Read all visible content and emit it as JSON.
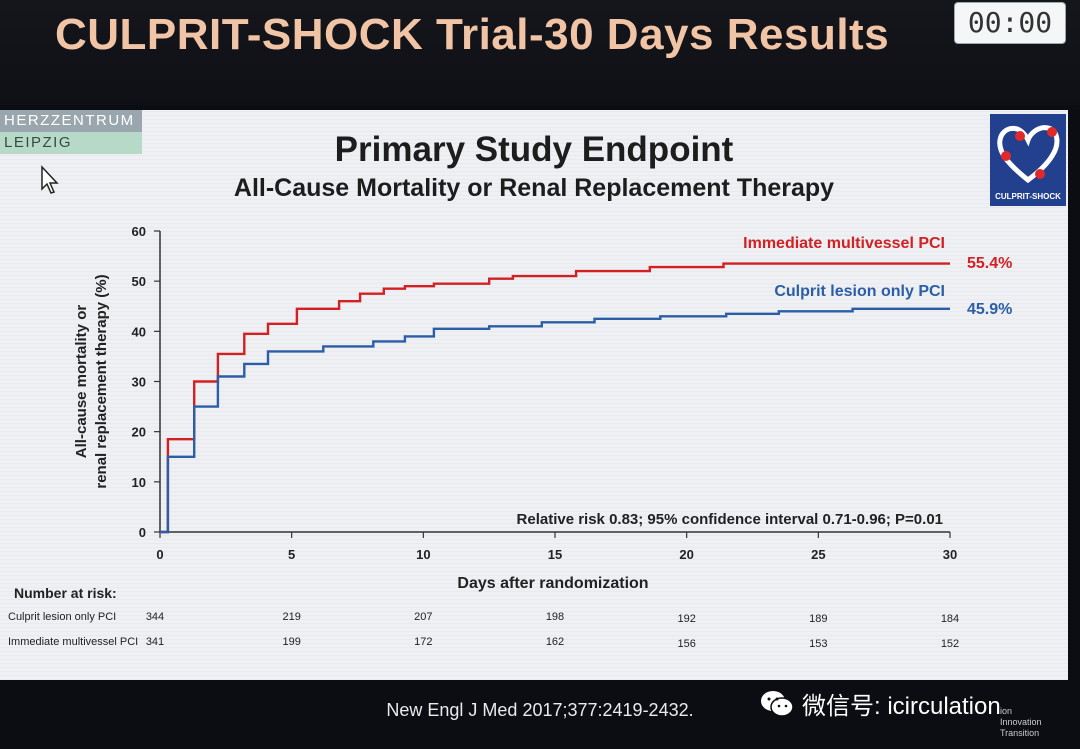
{
  "header": {
    "title": "CULPRIT-SHOCK Trial-30 Days Results",
    "timer": "00:00"
  },
  "logos": {
    "left_line1": "HERZZENTRUM",
    "left_line2": "LEIPZIG",
    "right_text": "CULPRIT-SHOCK"
  },
  "slide": {
    "title": "Primary Study Endpoint",
    "subtitle": "All-Cause Mortality or Renal Replacement Therapy"
  },
  "footer": {
    "citation": "New Engl J Med 2017;377:2419-2432."
  },
  "watermark": {
    "text": "微信号: icirculation",
    "small": [
      "ion",
      "Innovation",
      "Transition"
    ]
  },
  "colors": {
    "immediate": "#d32023",
    "culprit": "#2b5ea6"
  },
  "chart_data": {
    "type": "line",
    "title": "Primary Study Endpoint",
    "subtitle": "All-Cause Mortality or Renal Replacement Therapy",
    "xlabel": "Days after randomization",
    "ylabel": "All-cause mortality or renal replacement therapy (%)",
    "xlim": [
      0,
      30
    ],
    "ylim": [
      0,
      60
    ],
    "xticks": [
      0,
      5,
      10,
      15,
      20,
      25,
      30
    ],
    "yticks": [
      0,
      10,
      20,
      30,
      40,
      50,
      60
    ],
    "step": true,
    "series": [
      {
        "name": "Immediate multivessel PCI",
        "end_label": "55.4%",
        "points": [
          [
            0,
            0
          ],
          [
            0.3,
            0
          ],
          [
            0.3,
            18.5
          ],
          [
            1.3,
            18.5
          ],
          [
            1.3,
            30
          ],
          [
            2.2,
            30
          ],
          [
            2.2,
            35.5
          ],
          [
            3.2,
            35.5
          ],
          [
            3.2,
            39.5
          ],
          [
            4.1,
            39.5
          ],
          [
            4.1,
            41.5
          ],
          [
            5.2,
            41.5
          ],
          [
            5.2,
            44.5
          ],
          [
            6.8,
            44.5
          ],
          [
            6.8,
            46
          ],
          [
            7.6,
            46
          ],
          [
            7.6,
            47.5
          ],
          [
            8.5,
            47.5
          ],
          [
            8.5,
            48.5
          ],
          [
            9.3,
            48.5
          ],
          [
            9.3,
            49
          ],
          [
            10.4,
            49
          ],
          [
            10.4,
            49.5
          ],
          [
            12.5,
            49.5
          ],
          [
            12.5,
            50.5
          ],
          [
            13.4,
            50.5
          ],
          [
            13.4,
            51
          ],
          [
            15.8,
            51
          ],
          [
            15.8,
            52
          ],
          [
            18.6,
            52
          ],
          [
            18.6,
            52.8
          ],
          [
            21.4,
            52.8
          ],
          [
            21.4,
            53.5
          ],
          [
            30,
            53.5
          ]
        ]
      },
      {
        "name": "Culprit lesion only PCI",
        "end_label": "45.9%",
        "points": [
          [
            0,
            0
          ],
          [
            0.3,
            0
          ],
          [
            0.3,
            15
          ],
          [
            1.3,
            15
          ],
          [
            1.3,
            25
          ],
          [
            2.2,
            25
          ],
          [
            2.2,
            31
          ],
          [
            3.2,
            31
          ],
          [
            3.2,
            33.5
          ],
          [
            4.1,
            33.5
          ],
          [
            4.1,
            36
          ],
          [
            6.2,
            36
          ],
          [
            6.2,
            37
          ],
          [
            8.1,
            37
          ],
          [
            8.1,
            38
          ],
          [
            9.3,
            38
          ],
          [
            9.3,
            39
          ],
          [
            10.4,
            39
          ],
          [
            10.4,
            40.5
          ],
          [
            12.5,
            40.5
          ],
          [
            12.5,
            41
          ],
          [
            14.5,
            41
          ],
          [
            14.5,
            41.8
          ],
          [
            16.5,
            41.8
          ],
          [
            16.5,
            42.5
          ],
          [
            19,
            42.5
          ],
          [
            19,
            43
          ],
          [
            21.5,
            43
          ],
          [
            21.5,
            43.5
          ],
          [
            23.5,
            43.5
          ],
          [
            23.5,
            44
          ],
          [
            26.3,
            44
          ],
          [
            26.3,
            44.5
          ],
          [
            30,
            44.5
          ]
        ]
      }
    ],
    "annotation": "Relative risk 0.83; 95% confidence interval 0.71-0.96; P=0.01",
    "number_at_risk": {
      "heading": "Number at risk:",
      "rows": [
        {
          "label": "Culprit lesion only PCI",
          "values": [
            344,
            219,
            207,
            198,
            192,
            189,
            184
          ]
        },
        {
          "label": "Immediate multivessel PCI",
          "values": [
            341,
            199,
            172,
            162,
            156,
            153,
            152
          ]
        }
      ]
    },
    "grid": false,
    "legend": "inline-right"
  }
}
